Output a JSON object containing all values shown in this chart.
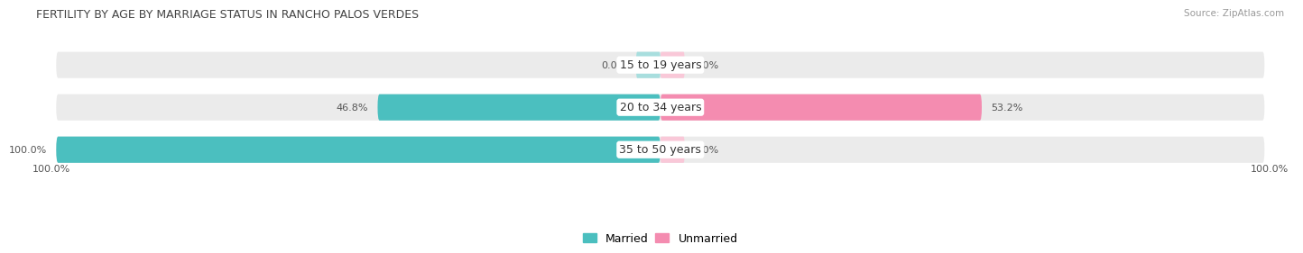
{
  "title": "FERTILITY BY AGE BY MARRIAGE STATUS IN RANCHO PALOS VERDES",
  "source": "Source: ZipAtlas.com",
  "categories": [
    "15 to 19 years",
    "20 to 34 years",
    "35 to 50 years"
  ],
  "married_values": [
    0.0,
    46.8,
    100.0
  ],
  "unmarried_values": [
    0.0,
    53.2,
    0.0
  ],
  "married_color": "#4bbfbf",
  "unmarried_color": "#f48cb0",
  "married_color_light": "#a8dede",
  "unmarried_color_light": "#f9c8d8",
  "bar_bg_color": "#ebebeb",
  "bar_height": 0.62,
  "title_fontsize": 9.0,
  "source_fontsize": 7.5,
  "label_fontsize": 8.0,
  "category_fontsize": 9.0,
  "legend_fontsize": 9.0,
  "bg_color": "#ffffff",
  "bottom_left_label": "100.0%",
  "bottom_right_label": "100.0%"
}
